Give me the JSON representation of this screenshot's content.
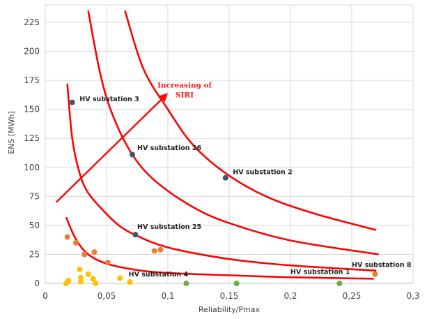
{
  "chart_data": {
    "type": "scatter",
    "title": "",
    "xlabel": "Reliability/Pmax",
    "ylabel": "ENS [MWh]",
    "xlim": [
      0,
      0.3
    ],
    "ylim": [
      0,
      240
    ],
    "xticks": [
      0,
      0.05,
      0.1,
      0.15,
      0.2,
      0.25,
      0.3
    ],
    "xtick_labels": [
      "0",
      "0,05",
      "0,1",
      "0,15",
      "0,2",
      "0,25",
      "0,3"
    ],
    "yticks": [
      0,
      25,
      50,
      75,
      100,
      125,
      150,
      175,
      200,
      225
    ],
    "ytick_labels": [
      "0",
      "25",
      "50",
      "75",
      "100",
      "125",
      "150",
      "175",
      "200",
      "225"
    ],
    "grid": true,
    "colors": {
      "dark": "#44546a",
      "orange": "#ed7d31",
      "yellow": "#ffc000",
      "green": "#70ad47",
      "curve": "#ff0000"
    },
    "point_groups": [
      {
        "color_key": "dark",
        "points": [
          [
            0.022,
            156
          ],
          [
            0.071,
            111
          ],
          [
            0.147,
            91
          ],
          [
            0.0735,
            42
          ]
        ]
      },
      {
        "color_key": "orange",
        "points": [
          [
            0.018,
            40
          ],
          [
            0.025,
            35
          ],
          [
            0.032,
            25
          ],
          [
            0.04,
            27
          ],
          [
            0.051,
            18
          ],
          [
            0.089,
            28
          ],
          [
            0.094,
            29
          ],
          [
            0.269,
            8
          ]
        ]
      },
      {
        "color_key": "yellow",
        "points": [
          [
            0.017,
            0
          ],
          [
            0.019,
            2.5
          ],
          [
            0.028,
            12
          ],
          [
            0.029,
            5
          ],
          [
            0.029,
            1.5
          ],
          [
            0.035,
            8
          ],
          [
            0.039,
            4
          ],
          [
            0.041,
            0
          ],
          [
            0.061,
            4.5
          ],
          [
            0.069,
            1.2
          ]
        ]
      },
      {
        "color_key": "green",
        "points": [
          [
            0.115,
            0
          ],
          [
            0.156,
            0
          ],
          [
            0.24,
            0
          ]
        ]
      }
    ],
    "curves": [
      [
        [
          0.017,
          57
        ],
        [
          0.025,
          38
        ],
        [
          0.035,
          25
        ],
        [
          0.05,
          17
        ],
        [
          0.075,
          11.5
        ],
        [
          0.1,
          9
        ],
        [
          0.15,
          7
        ],
        [
          0.2,
          5.3
        ],
        [
          0.268,
          4
        ]
      ],
      [
        [
          0.018,
          172
        ],
        [
          0.022,
          125
        ],
        [
          0.028,
          95
        ],
        [
          0.035,
          78
        ],
        [
          0.048,
          62
        ],
        [
          0.06,
          50
        ],
        [
          0.073,
          42
        ],
        [
          0.1,
          31
        ],
        [
          0.15,
          21
        ],
        [
          0.2,
          15.5
        ],
        [
          0.27,
          11
        ]
      ],
      [
        [
          0.035,
          235
        ],
        [
          0.045,
          180
        ],
        [
          0.055,
          145
        ],
        [
          0.071,
          111
        ],
        [
          0.09,
          88
        ],
        [
          0.12,
          66
        ],
        [
          0.15,
          52
        ],
        [
          0.2,
          37
        ],
        [
          0.272,
          25
        ]
      ],
      [
        [
          0.065,
          235
        ],
        [
          0.08,
          185
        ],
        [
          0.1,
          150
        ],
        [
          0.12,
          120
        ],
        [
          0.147,
          95
        ],
        [
          0.18,
          75
        ],
        [
          0.22,
          60
        ],
        [
          0.27,
          46
        ]
      ]
    ],
    "labels": [
      {
        "text": "HV substation 3",
        "x": 0.028,
        "y": 157
      },
      {
        "text": "HV substation 26",
        "x": 0.075,
        "y": 115
      },
      {
        "text": "HV substation 2",
        "x": 0.153,
        "y": 94
      },
      {
        "text": "HV substation 25",
        "x": 0.075,
        "y": 47
      },
      {
        "text": "HV substation 4",
        "x": 0.068,
        "y": 6
      },
      {
        "text": "HV substation 1",
        "x": 0.2,
        "y": 8
      },
      {
        "text": "HV substation 8",
        "x": 0.25,
        "y": 14
      }
    ],
    "annotation": {
      "lines": [
        "Increasing of",
        "SIRI"
      ],
      "arrow_from": [
        0.009,
        70
      ],
      "arrow_to": [
        0.1,
        164
      ]
    }
  }
}
